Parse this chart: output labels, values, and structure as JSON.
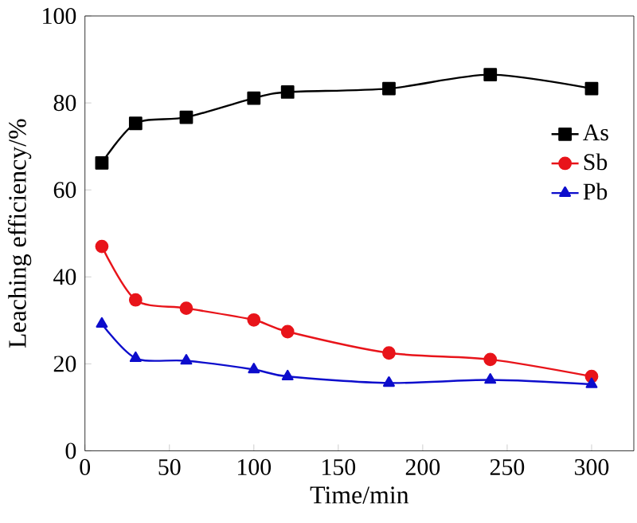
{
  "chart_data": {
    "type": "line",
    "xlabel": "Time/min",
    "ylabel": "Leaching efficiency/%",
    "x": [
      10,
      30,
      60,
      100,
      120,
      180,
      240,
      300
    ],
    "series": [
      {
        "name": "As",
        "color": "#000000",
        "marker": "square",
        "values": [
          66.2,
          75.3,
          76.7,
          81.1,
          82.5,
          83.3,
          86.5,
          83.3
        ]
      },
      {
        "name": "Sb",
        "color": "#e8141a",
        "marker": "circle",
        "values": [
          47,
          34.7,
          32.8,
          30.1,
          27.4,
          22.5,
          21,
          17.1
        ]
      },
      {
        "name": "Pb",
        "color": "#0d0dcc",
        "marker": "triangle",
        "values": [
          29.2,
          21.3,
          20.7,
          18.7,
          17.1,
          15.6,
          16.3,
          15.3
        ]
      }
    ],
    "xlim": [
      0,
      325
    ],
    "xticks": [
      0,
      50,
      100,
      150,
      200,
      250,
      300
    ],
    "ylim": [
      0,
      100
    ],
    "yticks": [
      0,
      20,
      40,
      60,
      80,
      100
    ],
    "legend": "right",
    "grid": false
  }
}
